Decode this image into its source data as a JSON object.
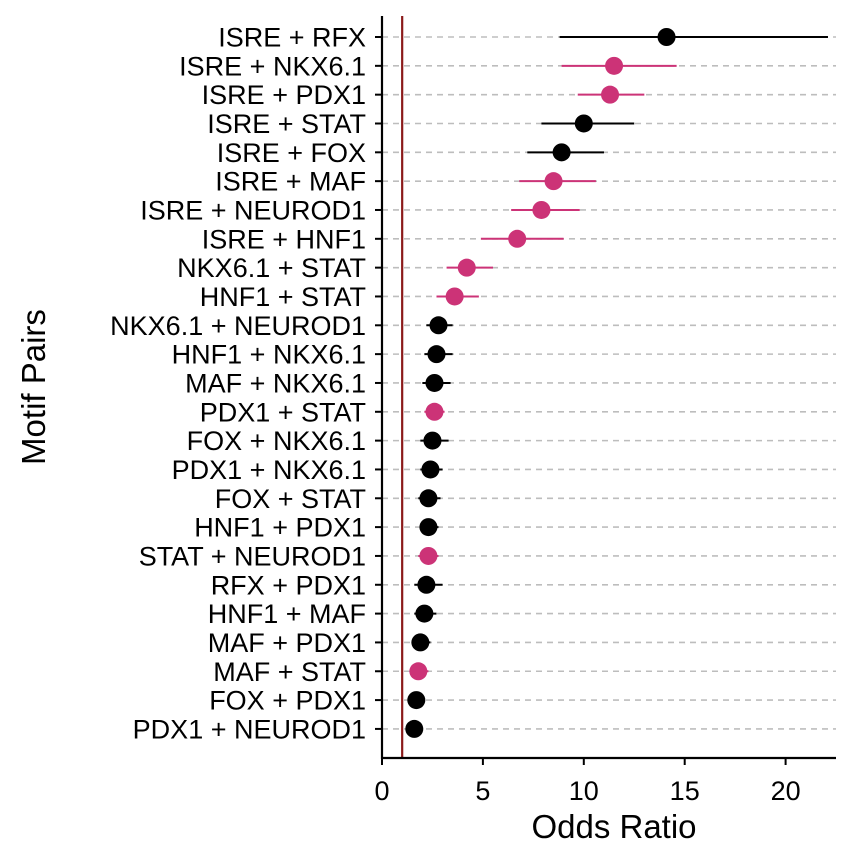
{
  "chart_data": {
    "type": "forest",
    "title": "",
    "xlabel": "Odds Ratio",
    "ylabel": "Motif Pairs",
    "xlim": [
      0,
      22.4
    ],
    "xticks": [
      0,
      5,
      10,
      15,
      20
    ],
    "reference_line": {
      "x": 1,
      "color": "#8b1a1a"
    },
    "grid": "horizontal dashed",
    "colors": {
      "black": "#000000",
      "highlight": "#cc3377",
      "grid": "#bdbdbd"
    },
    "rows": [
      {
        "label": "ISRE + RFX",
        "or": 14.1,
        "lo": 8.8,
        "hi": 22.1,
        "color": "#000000"
      },
      {
        "label": "ISRE + NKX6.1",
        "or": 11.5,
        "lo": 8.9,
        "hi": 14.6,
        "color": "#cc3377"
      },
      {
        "label": "ISRE + PDX1",
        "or": 11.3,
        "lo": 9.7,
        "hi": 13.0,
        "color": "#cc3377"
      },
      {
        "label": "ISRE + STAT",
        "or": 10.0,
        "lo": 7.9,
        "hi": 12.5,
        "color": "#000000"
      },
      {
        "label": "ISRE + FOX",
        "or": 8.9,
        "lo": 7.2,
        "hi": 11.0,
        "color": "#000000"
      },
      {
        "label": "ISRE + MAF",
        "or": 8.5,
        "lo": 6.8,
        "hi": 10.6,
        "color": "#cc3377"
      },
      {
        "label": "ISRE + NEUROD1",
        "or": 7.9,
        "lo": 6.4,
        "hi": 9.8,
        "color": "#cc3377"
      },
      {
        "label": "ISRE + HNF1",
        "or": 6.7,
        "lo": 4.9,
        "hi": 9.0,
        "color": "#cc3377"
      },
      {
        "label": "NKX6.1 + STAT",
        "or": 4.2,
        "lo": 3.2,
        "hi": 5.5,
        "color": "#cc3377"
      },
      {
        "label": "HNF1 + STAT",
        "or": 3.6,
        "lo": 2.7,
        "hi": 4.8,
        "color": "#cc3377"
      },
      {
        "label": "NKX6.1 + NEUROD1",
        "or": 2.8,
        "lo": 2.2,
        "hi": 3.5,
        "color": "#000000"
      },
      {
        "label": "HNF1 + NKX6.1",
        "or": 2.7,
        "lo": 2.1,
        "hi": 3.5,
        "color": "#000000"
      },
      {
        "label": "MAF + NKX6.1",
        "or": 2.6,
        "lo": 2.0,
        "hi": 3.4,
        "color": "#000000"
      },
      {
        "label": "PDX1 + STAT",
        "or": 2.6,
        "lo": 2.1,
        "hi": 3.1,
        "color": "#cc3377"
      },
      {
        "label": "FOX + NKX6.1",
        "or": 2.5,
        "lo": 1.9,
        "hi": 3.3,
        "color": "#000000"
      },
      {
        "label": "PDX1 + NKX6.1",
        "or": 2.4,
        "lo": 1.9,
        "hi": 3.0,
        "color": "#000000"
      },
      {
        "label": "FOX + STAT",
        "or": 2.3,
        "lo": 1.8,
        "hi": 2.9,
        "color": "#000000"
      },
      {
        "label": "HNF1 + PDX1",
        "or": 2.3,
        "lo": 1.9,
        "hi": 2.8,
        "color": "#000000"
      },
      {
        "label": "STAT + NEUROD1",
        "or": 2.3,
        "lo": 1.8,
        "hi": 2.8,
        "color": "#cc3377"
      },
      {
        "label": "RFX + PDX1",
        "or": 2.2,
        "lo": 1.6,
        "hi": 3.0,
        "color": "#000000"
      },
      {
        "label": "HNF1 + MAF",
        "or": 2.1,
        "lo": 1.6,
        "hi": 2.7,
        "color": "#000000"
      },
      {
        "label": "MAF + PDX1",
        "or": 1.9,
        "lo": 1.5,
        "hi": 2.4,
        "color": "#000000"
      },
      {
        "label": "MAF + STAT",
        "or": 1.8,
        "lo": 1.4,
        "hi": 2.3,
        "color": "#cc3377"
      },
      {
        "label": "FOX + PDX1",
        "or": 1.7,
        "lo": 1.3,
        "hi": 2.1,
        "color": "#000000"
      },
      {
        "label": "PDX1 + NEUROD1",
        "or": 1.6,
        "lo": 1.3,
        "hi": 2.0,
        "color": "#000000"
      }
    ]
  }
}
